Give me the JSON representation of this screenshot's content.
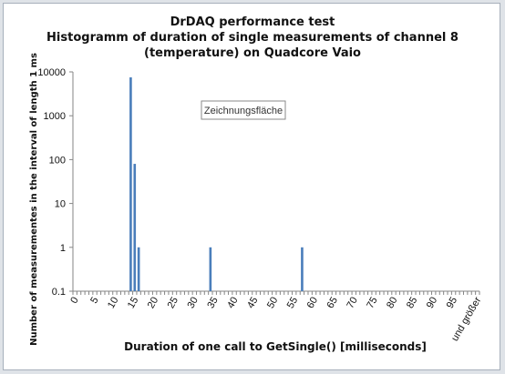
{
  "chart_data": {
    "type": "bar",
    "title_lines": [
      "DrDAQ performance test",
      "Histogramm of duration of single measurements of channel 8",
      "(temperature) on Quadcore Vaio"
    ],
    "xlabel": "Duration of  one call to GetSingle()   [milliseconds]",
    "ylabel": "Number of measurementes in the interval of length 1 ms",
    "y_scale": "log",
    "ylim": [
      0.1,
      10000
    ],
    "y_ticks": [
      "0.1",
      "1",
      "10",
      "100",
      "1000",
      "10000"
    ],
    "x_categories_count": 102,
    "x_tick_labels": [
      "0",
      "5",
      "10",
      "15",
      "20",
      "25",
      "30",
      "35",
      "40",
      "45",
      "50",
      "55",
      "60",
      "65",
      "70",
      "75",
      "80",
      "85",
      "90",
      "95",
      "und größer"
    ],
    "bars": [
      {
        "x": 14,
        "value": 7500
      },
      {
        "x": 15,
        "value": 80
      },
      {
        "x": 16,
        "value": 1
      },
      {
        "x": 34,
        "value": 1
      },
      {
        "x": 57,
        "value": 1
      }
    ],
    "bar_color": "#4a7ebb",
    "grid": false
  },
  "tooltip": "Zeichnungsfläche"
}
